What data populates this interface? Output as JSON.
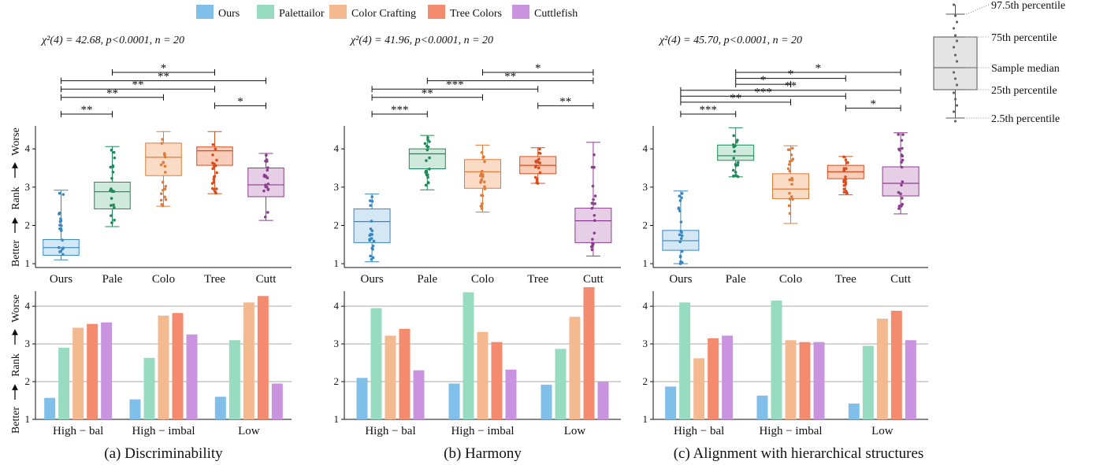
{
  "legend": [
    {
      "name": "Ours",
      "color": "#7fbfea"
    },
    {
      "name": "Palettailor",
      "color": "#97dbc0"
    },
    {
      "name": "Color Crafting",
      "color": "#f5b990"
    },
    {
      "name": "Tree Colors",
      "color": "#f48a6e"
    },
    {
      "name": "Cuttlefish",
      "color": "#c993e0"
    }
  ],
  "box_colors": {
    "Ours": {
      "line": "#3787c0",
      "fill": "#d3e7f5"
    },
    "Pale": {
      "line": "#1e8a58",
      "fill": "#cfe9dc"
    },
    "Colo": {
      "line": "#e07b3a",
      "fill": "#fadcc6"
    },
    "Tree": {
      "line": "#d84d1f",
      "fill": "#f8cdb9"
    },
    "Cutt": {
      "line": "#8b3d8f",
      "fill": "#e6cfe6"
    }
  },
  "box_legend": {
    "p975": "97.5th percentile",
    "p75": "75th percentile",
    "median": "Sample median",
    "p25": "25th percentile",
    "p25b": "2.5th percentile"
  },
  "y_axis_label": {
    "better": "Better",
    "rank": "Rank",
    "worse": "Worse"
  },
  "chart_data": [
    {
      "type": "box",
      "panel": "a",
      "stat_text": "χ²(4) = 42.68,  p<0.0001,  n = 20",
      "categories": [
        "Ours",
        "Pale",
        "Colo",
        "Tree",
        "Cutt"
      ],
      "ylim": [
        0.9,
        4.6
      ],
      "yticks": [
        1,
        2,
        3,
        4
      ],
      "boxes": [
        {
          "whislo": 1.1,
          "q1": 1.22,
          "med": 1.42,
          "q3": 1.63,
          "whishi": 2.92
        },
        {
          "whislo": 1.97,
          "q1": 2.43,
          "med": 2.88,
          "q3": 3.13,
          "whishi": 4.06
        },
        {
          "whislo": 2.5,
          "q1": 3.3,
          "med": 3.78,
          "q3": 4.15,
          "whishi": 4.45
        },
        {
          "whislo": 2.83,
          "q1": 3.57,
          "med": 3.95,
          "q3": 4.05,
          "whishi": 4.45
        },
        {
          "whislo": 2.13,
          "q1": 2.75,
          "med": 3.06,
          "q3": 3.5,
          "whishi": 3.88
        }
      ],
      "significance": [
        {
          "from": "Pale",
          "to": "Tree",
          "label": "*"
        },
        {
          "from": "Ours",
          "to": "Cutt",
          "label": "**"
        },
        {
          "from": "Ours",
          "to": "Tree",
          "label": "**"
        },
        {
          "from": "Ours",
          "to": "Colo",
          "label": "**"
        },
        {
          "from": "Tree",
          "to": "Cutt",
          "label": "*"
        },
        {
          "from": "Ours",
          "to": "Pale",
          "label": "**"
        }
      ]
    },
    {
      "type": "box",
      "panel": "b",
      "stat_text": "χ²(4) = 41.96,  p<0.0001,  n = 20",
      "categories": [
        "Ours",
        "Pale",
        "Colo",
        "Tree",
        "Cutt"
      ],
      "ylim": [
        0.9,
        4.6
      ],
      "yticks": [
        1,
        2,
        3,
        4
      ],
      "boxes": [
        {
          "whislo": 1.05,
          "q1": 1.55,
          "med": 2.1,
          "q3": 2.43,
          "whishi": 2.82
        },
        {
          "whislo": 2.93,
          "q1": 3.48,
          "med": 3.87,
          "q3": 4.0,
          "whishi": 4.35
        },
        {
          "whislo": 2.35,
          "q1": 2.97,
          "med": 3.4,
          "q3": 3.72,
          "whishi": 4.1
        },
        {
          "whislo": 3.1,
          "q1": 3.35,
          "med": 3.57,
          "q3": 3.8,
          "whishi": 4.03
        },
        {
          "whislo": 1.2,
          "q1": 1.55,
          "med": 2.12,
          "q3": 2.45,
          "whishi": 4.17
        }
      ],
      "significance": [
        {
          "from": "Colo",
          "to": "Cutt",
          "label": "*"
        },
        {
          "from": "Pale",
          "to": "Cutt",
          "label": "**"
        },
        {
          "from": "Ours",
          "to": "Tree",
          "label": "***"
        },
        {
          "from": "Ours",
          "to": "Colo",
          "label": "**"
        },
        {
          "from": "Tree",
          "to": "Cutt",
          "label": "**"
        },
        {
          "from": "Ours",
          "to": "Pale",
          "label": "***"
        }
      ]
    },
    {
      "type": "box",
      "panel": "c",
      "stat_text": "χ²(4) = 45.70,  p<0.0001,  n = 20",
      "categories": [
        "Ours",
        "Pale",
        "Colo",
        "Tree",
        "Cutt"
      ],
      "ylim": [
        0.9,
        4.6
      ],
      "yticks": [
        1,
        2,
        3,
        4
      ],
      "boxes": [
        {
          "whislo": 1.0,
          "q1": 1.35,
          "med": 1.6,
          "q3": 1.87,
          "whishi": 2.9
        },
        {
          "whislo": 3.27,
          "q1": 3.7,
          "med": 3.82,
          "q3": 4.1,
          "whishi": 4.55
        },
        {
          "whislo": 2.05,
          "q1": 2.7,
          "med": 2.95,
          "q3": 3.35,
          "whishi": 4.08
        },
        {
          "whislo": 2.8,
          "q1": 3.22,
          "med": 3.4,
          "q3": 3.57,
          "whishi": 3.8
        },
        {
          "whislo": 2.3,
          "q1": 2.77,
          "med": 3.1,
          "q3": 3.53,
          "whishi": 4.42
        }
      ],
      "significance": [
        {
          "from": "Pale",
          "to": "Cutt",
          "label": "*"
        },
        {
          "from": "Pale",
          "to": "Tree",
          "label": "*"
        },
        {
          "from": "Pale",
          "to": "Colo",
          "label": "*"
        },
        {
          "from": "Ours",
          "to": "Cutt",
          "label": "**"
        },
        {
          "from": "Ours",
          "to": "Tree",
          "label": "***"
        },
        {
          "from": "Ours",
          "to": "Colo",
          "label": "**"
        },
        {
          "from": "Tree",
          "to": "Cutt",
          "label": "*"
        },
        {
          "from": "Ours",
          "to": "Pale",
          "label": "***"
        }
      ]
    },
    {
      "type": "bar",
      "panel": "a",
      "caption": "(a) Discriminability",
      "categories": [
        "High − bal",
        "High − imbal",
        "Low"
      ],
      "ylim": [
        1,
        4.4
      ],
      "yticks": [
        1,
        2,
        3,
        4
      ],
      "series": [
        {
          "name": "Ours",
          "values": [
            1.57,
            1.53,
            1.6
          ]
        },
        {
          "name": "Palettailor",
          "values": [
            2.9,
            2.63,
            3.1
          ]
        },
        {
          "name": "Color Crafting",
          "values": [
            3.43,
            3.75,
            4.1
          ]
        },
        {
          "name": "Tree Colors",
          "values": [
            3.53,
            3.82,
            4.27
          ]
        },
        {
          "name": "Cuttlefish",
          "values": [
            3.57,
            3.25,
            1.95
          ]
        }
      ]
    },
    {
      "type": "bar",
      "panel": "b",
      "caption": "(b) Harmony",
      "categories": [
        "High − bal",
        "High − imbal",
        "Low"
      ],
      "ylim": [
        1,
        4.4
      ],
      "yticks": [
        1,
        2,
        3,
        4
      ],
      "series": [
        {
          "name": "Ours",
          "values": [
            2.1,
            1.95,
            1.92
          ]
        },
        {
          "name": "Palettailor",
          "values": [
            3.95,
            4.37,
            2.87
          ]
        },
        {
          "name": "Color Crafting",
          "values": [
            3.22,
            3.32,
            3.72
          ]
        },
        {
          "name": "Tree Colors",
          "values": [
            3.4,
            3.05,
            4.55
          ]
        },
        {
          "name": "Cuttlefish",
          "values": [
            2.3,
            2.32,
            2.0
          ]
        }
      ]
    },
    {
      "type": "bar",
      "panel": "c",
      "caption": "(c) Alignment with hierarchical structures",
      "categories": [
        "High − bal",
        "High − imbal",
        "Low"
      ],
      "ylim": [
        1,
        4.4
      ],
      "yticks": [
        1,
        2,
        3,
        4
      ],
      "series": [
        {
          "name": "Ours",
          "values": [
            1.87,
            1.63,
            1.42
          ]
        },
        {
          "name": "Palettailor",
          "values": [
            4.1,
            4.15,
            2.95
          ]
        },
        {
          "name": "Color Crafting",
          "values": [
            2.62,
            3.1,
            3.67
          ]
        },
        {
          "name": "Tree Colors",
          "values": [
            3.15,
            3.05,
            3.88
          ]
        },
        {
          "name": "Cuttlefish",
          "values": [
            3.22,
            3.05,
            3.1
          ]
        }
      ]
    }
  ]
}
